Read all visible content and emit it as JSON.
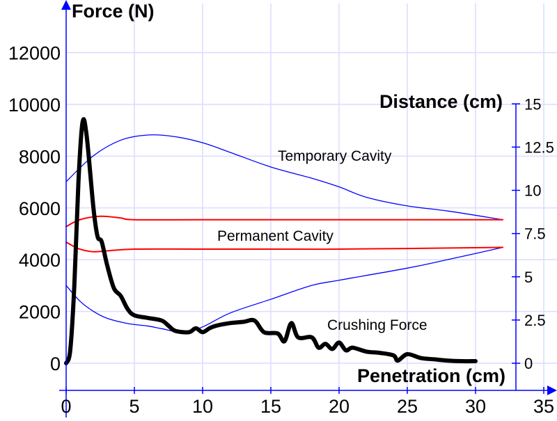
{
  "chart_data": {
    "type": "line",
    "title": "",
    "xlabel": "Penetration (cm)",
    "ylabel": "Force (N)",
    "y2label": "Distance (cm)",
    "xlim": [
      0,
      36
    ],
    "ylim": [
      -1000,
      13000
    ],
    "y2lim": [
      0,
      15
    ],
    "xticks": [
      0,
      5,
      10,
      15,
      20,
      25,
      30,
      35
    ],
    "yticks": [
      0,
      2000,
      4000,
      6000,
      8000,
      10000,
      12000
    ],
    "y2ticks": [
      0,
      2.5,
      5,
      7.5,
      10,
      12.5,
      15
    ],
    "grid": true,
    "annotations": [
      "Temporary Cavity",
      "Permanent Cavity",
      "Crushing Force"
    ],
    "series": [
      {
        "name": "Crushing Force",
        "axis": "left",
        "color": "#000000",
        "x": [
          0,
          0.3,
          0.6,
          0.9,
          1.2,
          1.5,
          2,
          2.3,
          2.6,
          3,
          3.5,
          4,
          4.5,
          5,
          6,
          7,
          7.5,
          8,
          9,
          9.5,
          10,
          10.5,
          11,
          12,
          13,
          13.8,
          14.5,
          15.5,
          16,
          16.5,
          17,
          18,
          18.5,
          19,
          19.5,
          20,
          20.5,
          21,
          22,
          23,
          24,
          24.3,
          25,
          26,
          27,
          28,
          29,
          30
        ],
        "y": [
          0,
          500,
          3000,
          7000,
          9300,
          8800,
          6000,
          4900,
          4700,
          3800,
          2900,
          2600,
          2100,
          1850,
          1750,
          1650,
          1450,
          1250,
          1200,
          1350,
          1200,
          1350,
          1450,
          1550,
          1600,
          1650,
          1200,
          1150,
          850,
          1550,
          1000,
          1000,
          600,
          750,
          550,
          800,
          500,
          600,
          450,
          400,
          300,
          100,
          350,
          200,
          150,
          100,
          80,
          80
        ]
      },
      {
        "name": "Temporary Cavity upper",
        "axis": "right",
        "color": "#0000ff",
        "x": [
          0,
          2,
          4,
          6,
          8,
          10,
          12,
          15,
          18,
          20,
          22,
          25,
          28,
          32
        ],
        "y": [
          10.5,
          12.0,
          12.9,
          13.2,
          13.1,
          12.75,
          12.2,
          11.35,
          10.7,
          10.2,
          9.6,
          9.1,
          8.8,
          8.3
        ]
      },
      {
        "name": "Temporary Cavity lower",
        "axis": "right",
        "color": "#0000ff",
        "x": [
          0,
          1,
          2,
          3,
          4.5,
          6,
          7,
          8.5,
          10,
          12,
          15,
          18,
          20,
          25,
          28,
          32
        ],
        "y": [
          4.5,
          3.6,
          3.0,
          2.6,
          2.3,
          2.15,
          2.0,
          1.8,
          2.1,
          2.9,
          3.7,
          4.5,
          4.8,
          5.5,
          6.0,
          6.7
        ]
      },
      {
        "name": "Permanent Cavity upper",
        "axis": "right",
        "color": "#ff0000",
        "x": [
          0,
          1,
          2.5,
          4,
          5,
          10,
          20,
          32
        ],
        "y": [
          7.9,
          8.3,
          8.5,
          8.4,
          8.3,
          8.3,
          8.3,
          8.3
        ]
      },
      {
        "name": "Permanent Cavity lower",
        "axis": "right",
        "color": "#ff0000",
        "x": [
          0,
          1,
          2,
          3,
          5,
          10,
          20,
          32
        ],
        "y": [
          7.0,
          6.6,
          6.45,
          6.5,
          6.6,
          6.6,
          6.6,
          6.7
        ]
      }
    ]
  }
}
